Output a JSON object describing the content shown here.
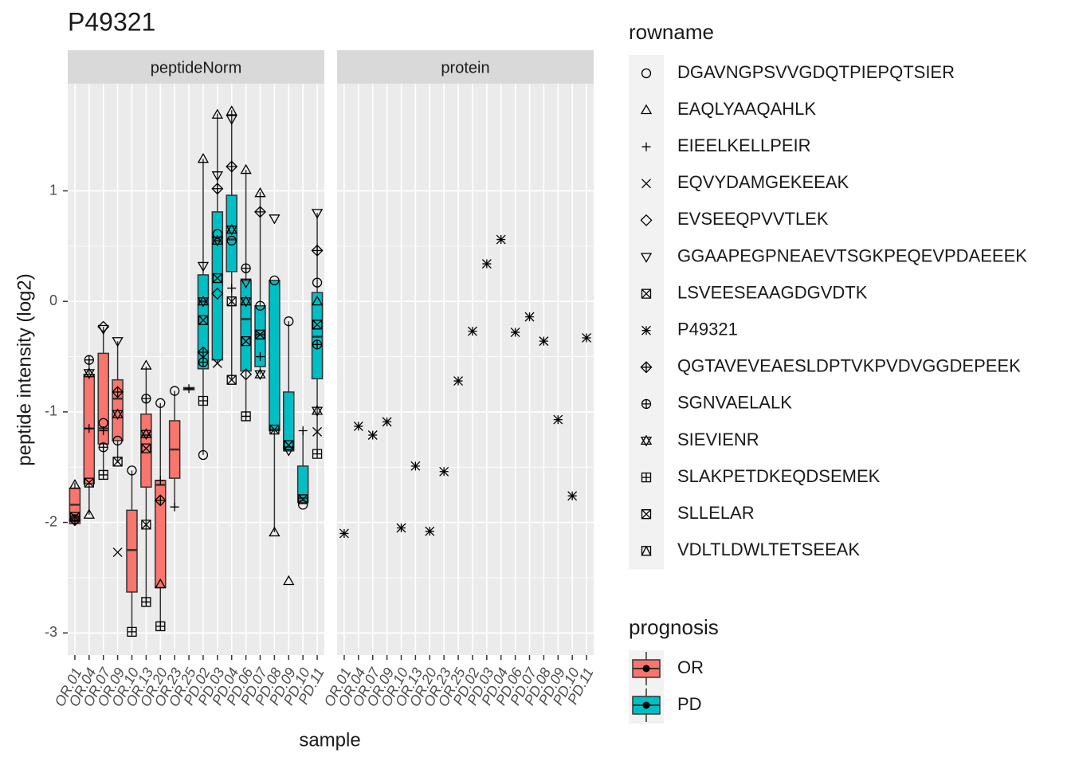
{
  "chart_data": {
    "type": "boxplot",
    "title": "P49321",
    "xlabel": "sample",
    "ylabel": "peptide intensity (log2)",
    "facets": [
      "peptideNorm",
      "protein"
    ],
    "categories": [
      "OR.01",
      "OR.04",
      "OR.07",
      "OR.09",
      "OR.10",
      "OR.13",
      "OR.20",
      "OR.23",
      "OR.25",
      "PD.02",
      "PD.03",
      "PD.04",
      "PD.06",
      "PD.07",
      "PD.08",
      "PD.09",
      "PD.10",
      "PD.11"
    ],
    "ylim": [
      -3.2,
      1.97
    ],
    "yticks": [
      -3,
      -2,
      -1,
      0,
      1
    ],
    "grid": true,
    "box_legend_title": "prognosis",
    "boxes": [
      {
        "name": "OR",
        "color": "#F8766D",
        "stats": [
          {
            "min": -2.01,
            "q1": -2.01,
            "median": -1.84,
            "q3": -1.69,
            "max": -1.64
          },
          {
            "min": -1.93,
            "q1": -1.65,
            "median": -1.15,
            "q3": -0.66,
            "max": -0.52
          },
          {
            "min": -1.57,
            "q1": -1.29,
            "median": -1.15,
            "q3": -0.47,
            "max": -0.23
          },
          {
            "min": -1.46,
            "q1": -1.26,
            "median": -0.88,
            "q3": -0.71,
            "max": -0.36
          },
          {
            "min": -2.99,
            "q1": -2.63,
            "median": -2.25,
            "q3": -1.89,
            "max": -1.53
          },
          {
            "min": -2.74,
            "q1": -1.68,
            "median": -1.21,
            "q3": -1.02,
            "max": -0.59
          },
          {
            "min": -2.94,
            "q1": -2.59,
            "median": -1.66,
            "q3": -1.62,
            "max": -0.92
          },
          {
            "min": -1.86,
            "q1": -1.6,
            "median": -1.34,
            "q3": -1.08,
            "max": -0.81
          },
          {
            "min": -0.8,
            "q1": -0.8,
            "median": -0.79,
            "q3": -0.78,
            "max": -0.78
          }
        ]
      },
      {
        "name": "PD",
        "color": "#00BFC4",
        "stats": [
          {
            "min": -1.39,
            "q1": -0.61,
            "median": 0,
            "q3": 0.24,
            "max": 1.29
          },
          {
            "min": -0.56,
            "q1": -0.53,
            "median": 0.55,
            "q3": 0.81,
            "max": 1.7
          },
          {
            "min": -0.71,
            "q1": 0.27,
            "median": 0.56,
            "q3": 0.96,
            "max": 1.73
          },
          {
            "min": -1.05,
            "q1": -0.63,
            "median": -0.16,
            "q3": 0.19,
            "max": 1.19
          },
          {
            "min": -0.66,
            "q1": -0.59,
            "median": -0.3,
            "q3": -0.04,
            "max": 0.99
          },
          {
            "min": -2.09,
            "q1": -1.17,
            "median": -1.16,
            "q3": 0.19,
            "max": 0.19
          },
          {
            "min": -1.35,
            "q1": -1.35,
            "median": -1.35,
            "q3": -0.82,
            "max": -0.18
          },
          {
            "min": -1.83,
            "q1": -1.82,
            "median": -1.78,
            "q3": -1.49,
            "max": -1.17
          },
          {
            "min": -1.38,
            "q1": -0.7,
            "median": -0.32,
            "q3": 0.08,
            "max": 0.8
          }
        ]
      }
    ],
    "legend_title": "rowname",
    "series": [
      {
        "name": "DGAVNGPSVVGDQTPIEPQTSIER",
        "values": [
          -1.97,
          null,
          -1.1,
          -1.26,
          -1.53,
          null,
          -0.92,
          -0.81,
          null,
          -1.39,
          0.61,
          0.55,
          null,
          -0.04,
          0.19,
          -0.18,
          -1.84,
          0.17
        ]
      },
      {
        "name": "EAQLYAAQAHLK",
        "values": [
          -1.66,
          -1.93,
          null,
          null,
          null,
          -0.58,
          -2.56,
          null,
          null,
          1.29,
          1.69,
          1.72,
          1.19,
          0.98,
          -2.09,
          -2.53,
          null,
          0
        ]
      },
      {
        "name": "EIEELKELLPEIR",
        "values": [
          null,
          -1.15,
          -1.17,
          null,
          null,
          null,
          -1.62,
          -1.86,
          -0.79,
          null,
          null,
          0.12,
          null,
          -0.5,
          null,
          null,
          -1.17,
          null
        ]
      },
      {
        "name": "EQVYDAMGEKEEAK",
        "values": [
          null,
          null,
          null,
          -2.27,
          null,
          null,
          null,
          null,
          null,
          null,
          -0.56,
          null,
          null,
          null,
          null,
          null,
          null,
          -1.18
        ]
      },
      {
        "name": "EVSEEQPVVTLEK",
        "values": [
          null,
          null,
          -0.23,
          null,
          null,
          null,
          null,
          null,
          null,
          null,
          0.07,
          null,
          -0.66,
          null,
          null,
          null,
          null,
          null
        ]
      },
      {
        "name": "GGAAPEGPNEAEVTSGKPEQEVPDAEEEK",
        "values": [
          null,
          null,
          -0.25,
          -0.36,
          null,
          null,
          null,
          null,
          null,
          0.32,
          1.14,
          1.65,
          0.17,
          null,
          0.75,
          -1.35,
          null,
          0.8
        ]
      },
      {
        "name": "LSVEESEAAGDGVDTK",
        "values": [
          -1.95,
          -1.64,
          null,
          -1.45,
          null,
          -1.33,
          null,
          null,
          null,
          -0.17,
          0.21,
          0,
          -0.36,
          -0.3,
          -1.16,
          -1.3,
          -1.79,
          -0.21
        ]
      },
      {
        "name": "P49321",
        "facet": 1,
        "values": [
          -2.1,
          -1.13,
          -1.21,
          -1.09,
          -2.05,
          -1.49,
          -2.08,
          -1.54,
          -0.72,
          -0.27,
          0.34,
          0.56,
          -0.28,
          -0.14,
          -0.36,
          -1.07,
          -1.76,
          -0.33
        ]
      },
      {
        "name": "QGTAVEVEAESLDPTVKPVDVGGDEPEEK",
        "values": [
          -1.98,
          null,
          null,
          -0.82,
          null,
          null,
          -1.8,
          null,
          null,
          -0.46,
          1.02,
          1.22,
          null,
          0.81,
          null,
          null,
          null,
          0.46
        ]
      },
      {
        "name": "SGNVAELALK",
        "values": [
          null,
          -0.53,
          -1.32,
          null,
          null,
          -0.88,
          null,
          null,
          null,
          -0.55,
          null,
          null,
          0.3,
          null,
          null,
          null,
          null,
          -0.39
        ]
      },
      {
        "name": "SIEVIENR",
        "values": [
          null,
          -0.65,
          null,
          -1.02,
          null,
          -1.2,
          null,
          null,
          null,
          0,
          0.55,
          0.65,
          0,
          -0.66,
          null,
          null,
          null,
          -0.99
        ]
      },
      {
        "name": "SLAKPETDKEQDSEMEK",
        "values": [
          null,
          null,
          -1.57,
          null,
          -2.99,
          -2.72,
          -2.94,
          null,
          null,
          -0.9,
          null,
          null,
          -1.04,
          null,
          null,
          null,
          null,
          -1.38
        ]
      },
      {
        "name": "SLLELAR",
        "values": [
          null,
          null,
          null,
          null,
          null,
          -2.02,
          null,
          null,
          null,
          null,
          null,
          -0.71,
          null,
          null,
          null,
          null,
          null,
          null
        ]
      },
      {
        "name": "VDLTLDWLTETSEEAK",
        "values": [
          null,
          null,
          null,
          null,
          null,
          null,
          null,
          null,
          null,
          null,
          null,
          null,
          null,
          null,
          null,
          null,
          null,
          null
        ]
      }
    ]
  }
}
